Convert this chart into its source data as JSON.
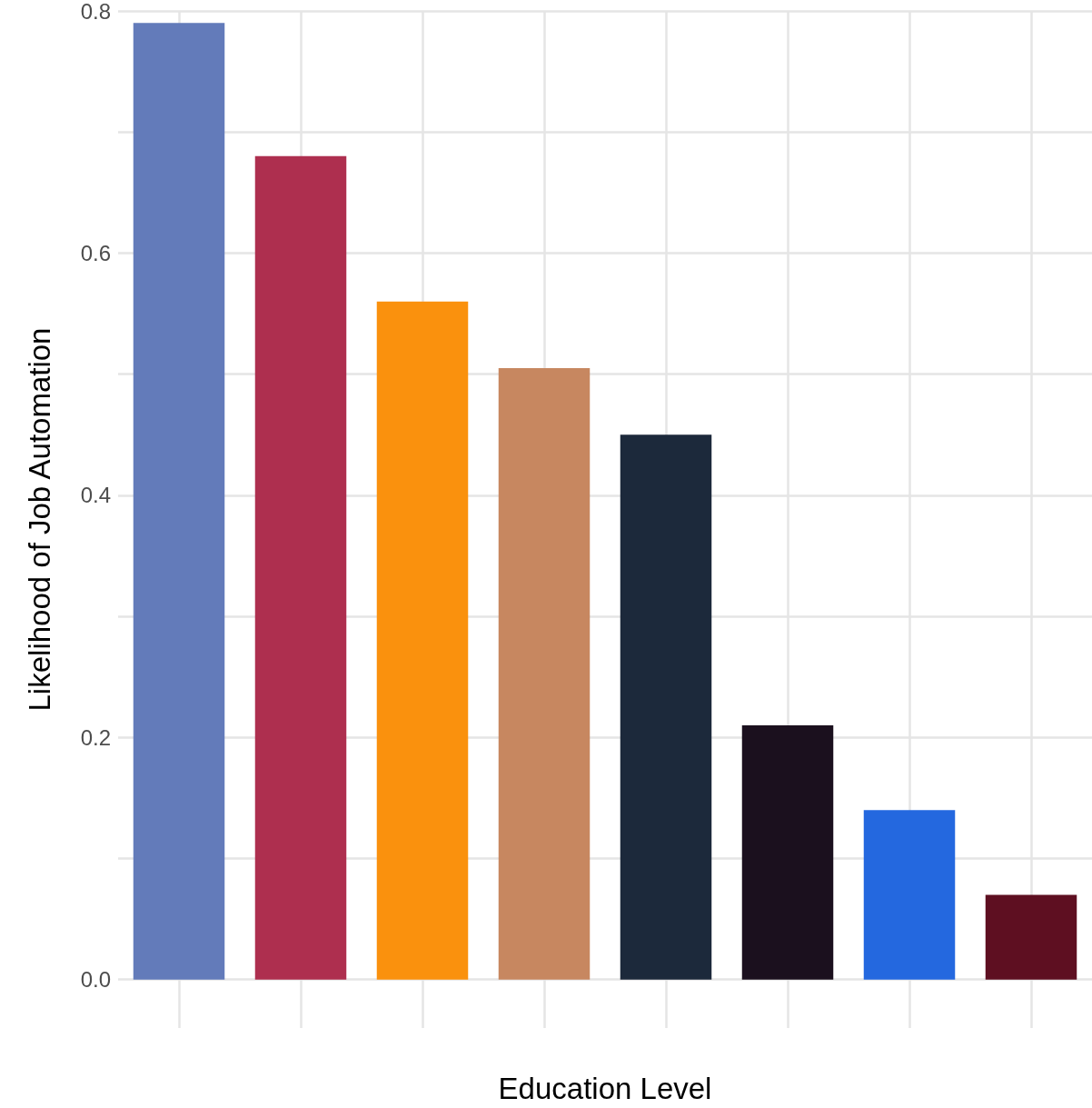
{
  "chart_data": {
    "type": "bar",
    "xlabel": "Education Level",
    "ylabel": "Likelihood of Job Automation",
    "categories": [
      null,
      null,
      null,
      null,
      null,
      null,
      null,
      null
    ],
    "values": [
      0.79,
      0.68,
      0.56,
      0.505,
      0.45,
      0.21,
      0.14,
      0.07
    ],
    "colors": [
      "#637bba",
      "#ae2f4f",
      "#fa910d",
      "#c78760",
      "#1c293b",
      "#1b101e",
      "#2468df",
      "#5e0f21"
    ],
    "ylim": [
      -0.04,
      0.8
    ],
    "yticks": [
      {
        "value": 0,
        "label": "0.0"
      },
      {
        "value": 0.1,
        "label": null
      },
      {
        "value": 0.2,
        "label": "0.2"
      },
      {
        "value": 0.3,
        "label": null
      },
      {
        "value": 0.4,
        "label": "0.4"
      },
      {
        "value": 0.5,
        "label": null
      },
      {
        "value": 0.6,
        "label": "0.6"
      },
      {
        "value": 0.7,
        "label": null
      },
      {
        "value": 0.8,
        "label": "0.8"
      }
    ],
    "grid": true
  }
}
